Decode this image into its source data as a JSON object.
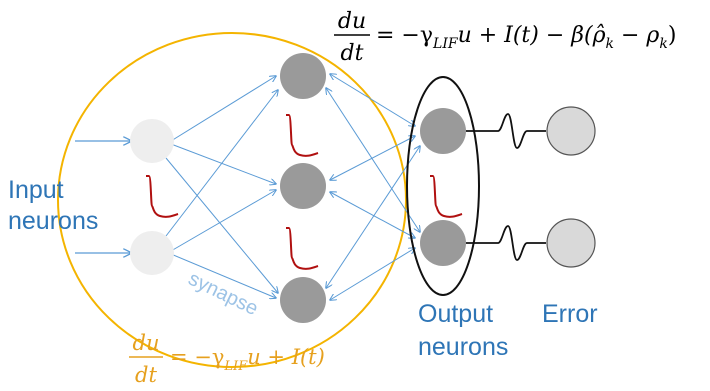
{
  "labels": {
    "input_line1": "Input",
    "input_line2": "neurons",
    "synapse": "synapse",
    "output_line1": "Output",
    "output_line2": "neurons",
    "error": "Error"
  },
  "equations": {
    "top": {
      "num": "du",
      "den": "dt",
      "rhs_a": "= −γ",
      "sub_a": "LIF",
      "rhs_b": "u + I(t) − β(ρ̂",
      "sub_b": "k",
      "rhs_c": " − ρ",
      "sub_c": "k",
      "rhs_d": ")"
    },
    "bottom": {
      "num": "du",
      "den": "dt",
      "rhs_a": "= −γ",
      "sub_a": "LIF",
      "rhs_b": "u + I(t)"
    }
  },
  "colors": {
    "label_blue": "#2e75b6",
    "synapse_blue": "#9dc3e6",
    "edge_blue": "#5b9bd5",
    "ellipse_yellow": "#f4b400",
    "equation_orange": "#e6a01e",
    "spike_red": "#b01010",
    "neuron_dark": "#9a9a9a",
    "neuron_light": "#eeeeee",
    "error_node": "#d9d9d9"
  }
}
